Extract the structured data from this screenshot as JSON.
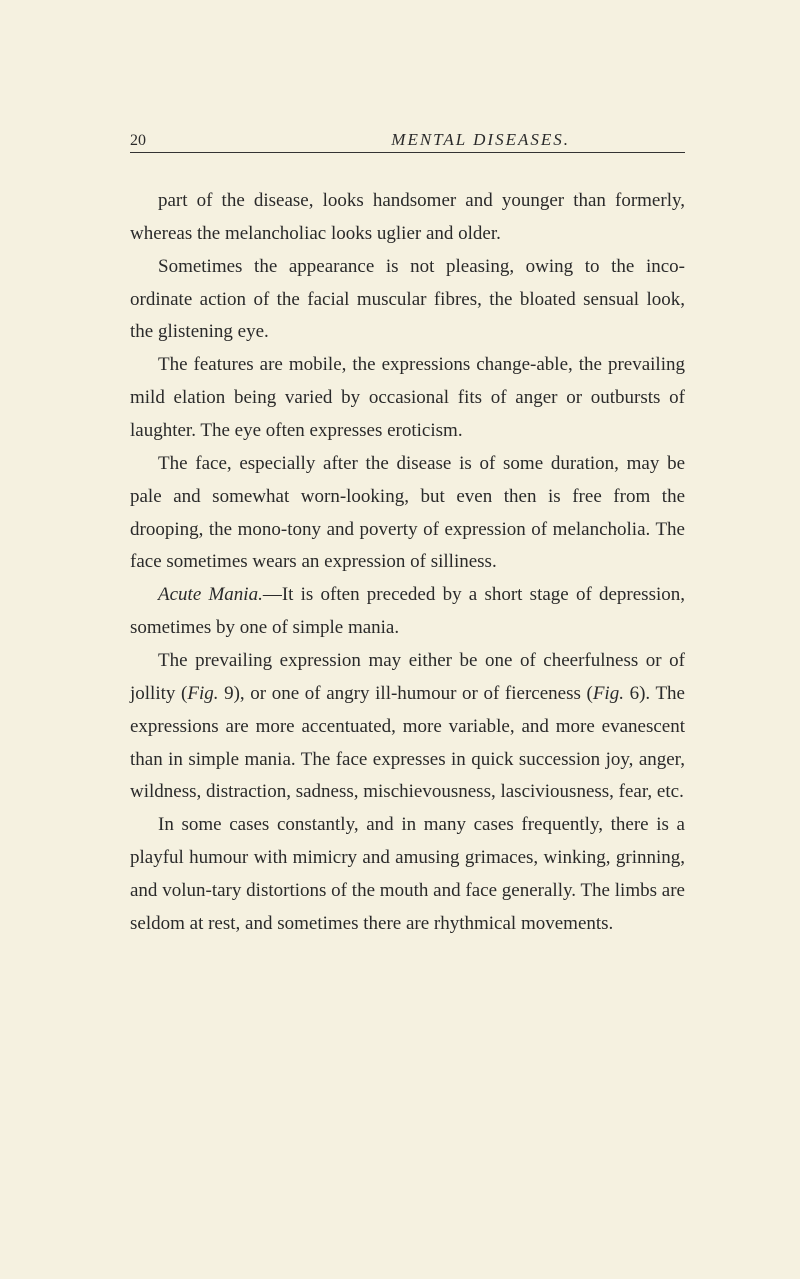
{
  "header": {
    "page_number": "20",
    "running_title": "MENTAL DISEASES."
  },
  "paragraphs": {
    "p1": "part of the disease, looks handsomer and younger than formerly, whereas the melancholiac looks uglier and older.",
    "p2": "Sometimes the appearance is not pleasing, owing to the inco-ordinate action of the facial muscular fibres, the bloated sensual look, the glistening eye.",
    "p3": "The features are mobile, the expressions change-able, the prevailing mild elation being varied by occasional fits of anger or outbursts of laughter. The eye often expresses eroticism.",
    "p4": "The face, especially after the disease is of some duration, may be pale and somewhat worn-looking, but even then is free from the drooping, the mono-tony and poverty of expression of melancholia. The face sometimes wears an expression of silliness.",
    "p5_italic": "Acute Mania.",
    "p5_rest": "—It is often preceded by a short stage of depression, sometimes by one of simple mania.",
    "p6_a": "The prevailing expression may either be one of cheerfulness or of jollity (",
    "p6_fig1": "Fig.",
    "p6_b": " 9), or one of angry ill-humour or of fierceness (",
    "p6_fig2": "Fig.",
    "p6_c": " 6). The expressions are more accentuated, more variable, and more evanescent than in simple mania. The face expresses in quick succession joy, anger, wildness, distraction, sadness, mischievousness, lasciviousness, fear, etc.",
    "p7": "In some cases constantly, and in many cases frequently, there is a playful humour with mimicry and amusing grimaces, winking, grinning, and volun-tary distortions of the mouth and face generally. The limbs are seldom at rest, and sometimes there are rhythmical movements."
  },
  "colors": {
    "background": "#f5f1e0",
    "text": "#2a2a2a",
    "rule": "#333333"
  },
  "typography": {
    "body_fontsize": 19,
    "header_fontsize": 17,
    "line_height": 1.73
  }
}
